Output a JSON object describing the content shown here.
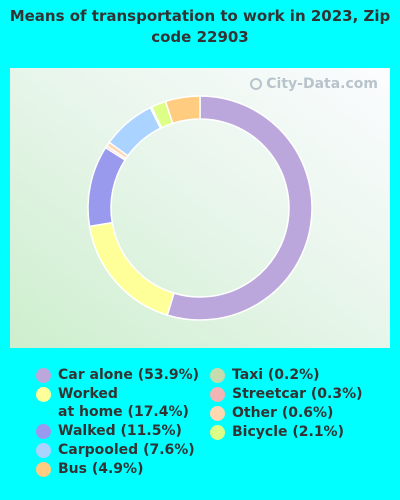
{
  "chart_data": {
    "type": "pie",
    "title": "Means of transportation to work in 2023, Zip code 22903",
    "slices": [
      {
        "label": "Car alone (53.9%)",
        "value": 53.9,
        "color": "#bba7dc"
      },
      {
        "label": "Worked\nat home (17.4%)",
        "value": 17.4,
        "color": "#ffff99"
      },
      {
        "label": "Walked (11.5%)",
        "value": 11.5,
        "color": "#9999ee"
      },
      {
        "label": "Carpooled (7.6%)",
        "value": 7.6,
        "color": "#aad4ff"
      },
      {
        "label": "Bus (4.9%)",
        "value": 4.9,
        "color": "#ffcc80"
      },
      {
        "label": "Taxi (0.2%)",
        "value": 0.2,
        "color": "#c5dcae"
      },
      {
        "label": "Streetcar (0.3%)",
        "value": 0.3,
        "color": "#f2b4b4"
      },
      {
        "label": "Other (0.6%)",
        "value": 0.6,
        "color": "#ffd7b0"
      },
      {
        "label": "Bicycle (2.1%)",
        "value": 2.1,
        "color": "#ddff88"
      }
    ],
    "ring_order": [
      "Car alone (53.9%)",
      "Worked\nat home (17.4%)",
      "Walked (11.5%)",
      "Streetcar (0.3%)",
      "Other (0.6%)",
      "Carpooled (7.6%)",
      "Taxi (0.2%)",
      "Bicycle (2.1%)",
      "Bus (4.9%)"
    ],
    "legend_columns": [
      [
        "Car alone (53.9%)",
        "Worked\nat home (17.4%)",
        "Walked (11.5%)",
        "Carpooled (7.6%)",
        "Bus (4.9%)"
      ],
      [
        "Taxi (0.2%)",
        "Streetcar (0.3%)",
        "Other (0.6%)",
        "Bicycle (2.1%)"
      ]
    ],
    "legend_placement": "bottom"
  },
  "watermark": {
    "text": "City-Data.com",
    "icon": "magnifier-icon"
  }
}
